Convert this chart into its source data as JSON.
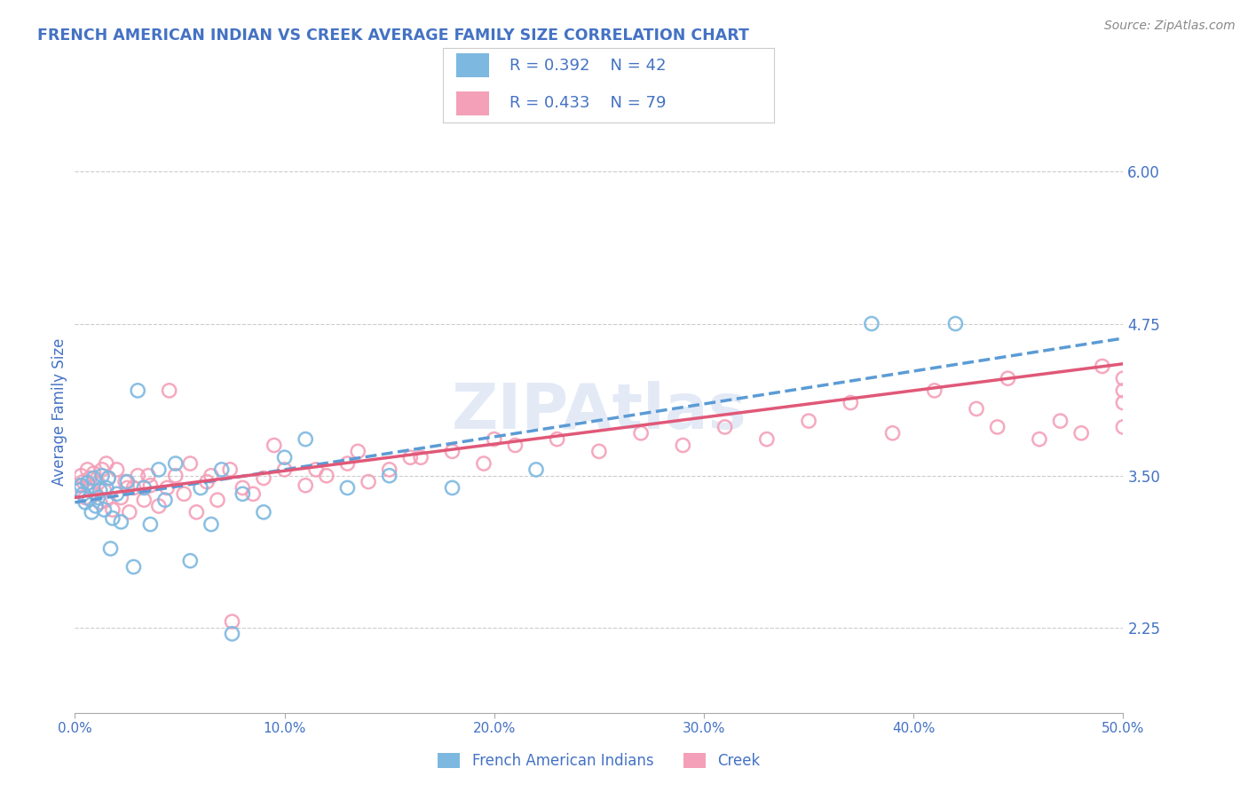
{
  "title": "FRENCH AMERICAN INDIAN VS CREEK AVERAGE FAMILY SIZE CORRELATION CHART",
  "source": "Source: ZipAtlas.com",
  "ylabel": "Average Family Size",
  "yticks": [
    2.25,
    3.5,
    4.75,
    6.0
  ],
  "xlim": [
    0.0,
    0.5
  ],
  "ylim": [
    1.55,
    6.5
  ],
  "watermark": "ZIPAtlas",
  "legend_r1": "R = 0.392",
  "legend_n1": "N = 42",
  "legend_r2": "R = 0.433",
  "legend_n2": "N = 79",
  "color_blue": "#7db8e0",
  "color_pink": "#f4a0b8",
  "line_blue": "#5b9bd5",
  "line_pink": "#e05878",
  "title_color": "#4472c4",
  "tick_color": "#4472c4",
  "french_x": [
    0.002,
    0.003,
    0.004,
    0.005,
    0.006,
    0.007,
    0.008,
    0.009,
    0.01,
    0.011,
    0.012,
    0.013,
    0.014,
    0.015,
    0.016,
    0.017,
    0.018,
    0.02,
    0.022,
    0.025,
    0.028,
    0.03,
    0.033,
    0.036,
    0.04,
    0.043,
    0.048,
    0.055,
    0.06,
    0.065,
    0.07,
    0.075,
    0.08,
    0.09,
    0.1,
    0.11,
    0.13,
    0.15,
    0.18,
    0.22,
    0.38,
    0.42
  ],
  "french_y": [
    3.38,
    3.42,
    3.35,
    3.28,
    3.44,
    3.31,
    3.2,
    3.48,
    3.25,
    3.32,
    3.38,
    3.5,
    3.22,
    3.4,
    3.48,
    2.9,
    3.15,
    3.35,
    3.12,
    3.45,
    2.75,
    4.2,
    3.4,
    3.1,
    3.55,
    3.3,
    3.6,
    2.8,
    3.4,
    3.1,
    3.55,
    2.2,
    3.35,
    3.2,
    3.65,
    3.8,
    3.4,
    3.5,
    3.4,
    3.55,
    4.75,
    4.75
  ],
  "creek_x": [
    0.001,
    0.002,
    0.003,
    0.004,
    0.005,
    0.006,
    0.007,
    0.008,
    0.009,
    0.01,
    0.011,
    0.012,
    0.013,
    0.014,
    0.015,
    0.016,
    0.018,
    0.02,
    0.022,
    0.024,
    0.026,
    0.028,
    0.03,
    0.033,
    0.036,
    0.04,
    0.044,
    0.048,
    0.052,
    0.058,
    0.063,
    0.068,
    0.074,
    0.08,
    0.085,
    0.09,
    0.1,
    0.11,
    0.12,
    0.13,
    0.14,
    0.15,
    0.165,
    0.18,
    0.195,
    0.21,
    0.23,
    0.25,
    0.27,
    0.29,
    0.31,
    0.33,
    0.35,
    0.37,
    0.39,
    0.41,
    0.43,
    0.445,
    0.46,
    0.47,
    0.48,
    0.49,
    0.5,
    0.5,
    0.5,
    0.5,
    0.015,
    0.025,
    0.035,
    0.045,
    0.055,
    0.065,
    0.075,
    0.095,
    0.115,
    0.135,
    0.16,
    0.2,
    0.44
  ],
  "creek_y": [
    3.42,
    3.38,
    3.5,
    3.45,
    3.32,
    3.55,
    3.48,
    3.4,
    3.52,
    3.35,
    3.44,
    3.28,
    3.55,
    3.38,
    3.3,
    3.48,
    3.22,
    3.55,
    3.32,
    3.45,
    3.2,
    3.4,
    3.5,
    3.3,
    3.42,
    3.25,
    3.4,
    3.5,
    3.35,
    3.2,
    3.45,
    3.3,
    3.55,
    3.4,
    3.35,
    3.48,
    3.55,
    3.42,
    3.5,
    3.6,
    3.45,
    3.55,
    3.65,
    3.7,
    3.6,
    3.75,
    3.8,
    3.7,
    3.85,
    3.75,
    3.9,
    3.8,
    3.95,
    4.1,
    3.85,
    4.2,
    4.05,
    4.3,
    3.8,
    3.95,
    3.85,
    4.4,
    3.9,
    4.1,
    4.2,
    4.3,
    3.6,
    3.4,
    3.5,
    4.2,
    3.6,
    3.5,
    2.3,
    3.75,
    3.55,
    3.7,
    3.65,
    3.8,
    3.9
  ]
}
